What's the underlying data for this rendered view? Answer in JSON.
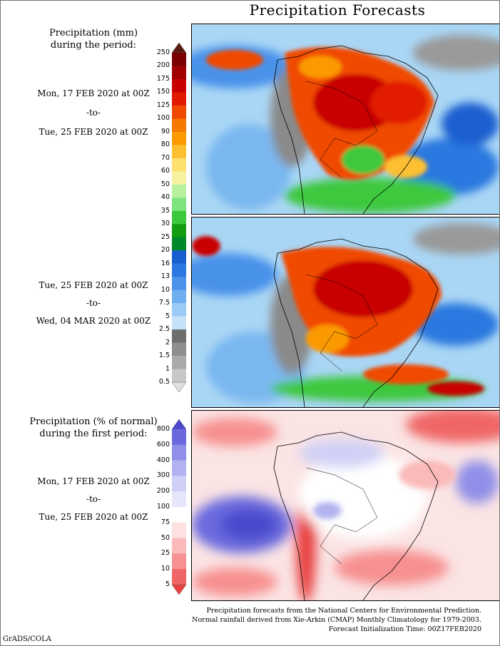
{
  "title": "Precipitation Forecasts",
  "panel_top": {
    "header_line1": "Precipitation (mm)",
    "header_line2": "during the period:",
    "from": "Mon, 17 FEB 2020 at 00Z",
    "sep": "-to-",
    "to": "Tue, 25 FEB 2020 at 00Z"
  },
  "panel_mid": {
    "from": "Tue, 25 FEB 2020 at 00Z",
    "sep": "-to-",
    "to": "Wed, 04 MAR 2020 at 00Z"
  },
  "panel_bottom": {
    "header_line1": "Precipitation (% of normal)",
    "header_line2": "during the first period:",
    "from": "Mon, 17 FEB 2020 at 00Z",
    "sep": "-to-",
    "to": "Tue, 25 FEB 2020 at 00Z"
  },
  "mm_scale": {
    "labels": [
      "250",
      "200",
      "175",
      "150",
      "125",
      "100",
      "90",
      "80",
      "70",
      "60",
      "50",
      "40",
      "35",
      "30",
      "25",
      "20",
      "16",
      "13",
      "10",
      "7.5",
      "5",
      "2.5",
      "2",
      "1.5",
      "1",
      "0.5"
    ],
    "colors": [
      "#5a1a0e",
      "#7a0000",
      "#a00000",
      "#c80000",
      "#e21a00",
      "#f04a00",
      "#f77800",
      "#fb9a00",
      "#fcc030",
      "#fde070",
      "#f6f2a0",
      "#b8f0a0",
      "#7ee47e",
      "#3cc83c",
      "#129c12",
      "#00882c",
      "#1a5fd0",
      "#2a78e0",
      "#4a92ea",
      "#70aef2",
      "#9ccaf6",
      "#c4e2fa",
      "#6e6e6e",
      "#8e8e8e",
      "#aaaaaa",
      "#c8c8c8",
      "#e0e0e0"
    ]
  },
  "pct_scale": {
    "labels": [
      "800",
      "600",
      "400",
      "300",
      "200",
      "100",
      "75",
      "50",
      "25",
      "10",
      "5"
    ],
    "colors": [
      "#4a48cc",
      "#6a6ade",
      "#8f8fe8",
      "#b2b2f0",
      "#d0d0f6",
      "#e6e6fa",
      "#ffffff",
      "#fde0e0",
      "#fbbaba",
      "#f79090",
      "#f06666",
      "#e84040"
    ]
  },
  "footer": {
    "line1": "Precipitation forecasts from the National Centers for Environmental Prediction.",
    "line2": "Normal rainfall derived from Xie-Arkin (CMAP) Monthly Climatology for 1979-2003.",
    "line3": "Forecast Initialization Time: 00Z17FEB2020"
  },
  "credit": "GrADS/COLA"
}
